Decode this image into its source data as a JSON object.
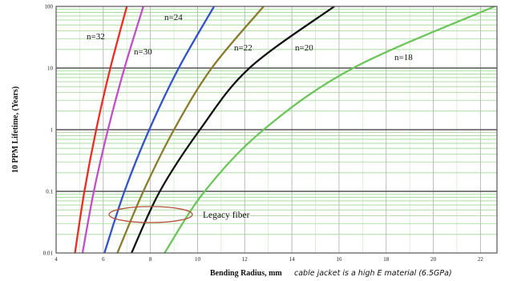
{
  "chart_data": {
    "type": "line",
    "xlabel": "Bending Radius, mm",
    "ylabel": "10 PPM Lifetime, (Years)",
    "xlim": [
      4,
      22.7
    ],
    "ylim": [
      0.01,
      100
    ],
    "yscale": "log",
    "grid": true,
    "legend": "none",
    "xticks": [
      4,
      6,
      8,
      10,
      12,
      14,
      16,
      18,
      20,
      22
    ],
    "xtick_labels": [
      "4",
      "6",
      "8",
      "10",
      "12",
      "14",
      "16",
      "18",
      "20",
      "22"
    ],
    "yticks": [
      100,
      10,
      1,
      0.1,
      0.01
    ],
    "ytick_labels": [
      "100",
      "10",
      "1",
      "0.1",
      "0.01"
    ],
    "series": [
      {
        "name": "n=32",
        "color": "#ee2b24",
        "x": [
          4.8,
          5.2,
          5.7,
          6.3,
          7.0
        ],
        "y": [
          0.01,
          0.1,
          1,
          10,
          100
        ]
      },
      {
        "name": "n=30",
        "color": "#c24fc8",
        "x": [
          5.12,
          5.6,
          6.2,
          6.9,
          7.7
        ],
        "y": [
          0.01,
          0.1,
          1,
          10,
          100
        ]
      },
      {
        "name": "n=24",
        "color": "#3452c9",
        "x": [
          6.05,
          6.9,
          7.95,
          9.2,
          10.7
        ],
        "y": [
          0.01,
          0.1,
          1,
          10,
          100
        ]
      },
      {
        "name": "n=22",
        "color": "#8b7b2c",
        "x": [
          6.6,
          7.7,
          9.0,
          10.6,
          12.8
        ],
        "y": [
          0.01,
          0.1,
          1,
          10,
          100
        ]
      },
      {
        "name": "n=20",
        "color": "#111111",
        "x": [
          7.2,
          8.4,
          10.1,
          12.2,
          15.8
        ],
        "y": [
          0.01,
          0.1,
          1,
          10,
          100
        ]
      },
      {
        "name": "n=18",
        "color": "#6cc55a",
        "x": [
          8.6,
          10.3,
          12.8,
          16.6,
          22.6
        ],
        "y": [
          0.01,
          0.1,
          1,
          10,
          100
        ]
      }
    ],
    "annotations": [
      {
        "text": "Legacy fiber",
        "color": "#b5523a"
      }
    ],
    "note": "cable jacket is a high E material (6.5GPa)"
  }
}
